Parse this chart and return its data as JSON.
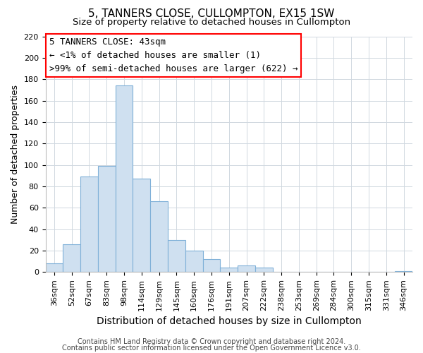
{
  "title": "5, TANNERS CLOSE, CULLOMPTON, EX15 1SW",
  "subtitle": "Size of property relative to detached houses in Cullompton",
  "xlabel": "Distribution of detached houses by size in Cullompton",
  "ylabel": "Number of detached properties",
  "bar_color": "#cfe0f0",
  "bar_edge_color": "#7fb0d8",
  "background_color": "#ffffff",
  "grid_color": "#d0d8e0",
  "categories": [
    "36sqm",
    "52sqm",
    "67sqm",
    "83sqm",
    "98sqm",
    "114sqm",
    "129sqm",
    "145sqm",
    "160sqm",
    "176sqm",
    "191sqm",
    "207sqm",
    "222sqm",
    "238sqm",
    "253sqm",
    "269sqm",
    "284sqm",
    "300sqm",
    "315sqm",
    "331sqm",
    "346sqm"
  ],
  "values": [
    8,
    26,
    89,
    99,
    174,
    87,
    66,
    30,
    20,
    12,
    4,
    6,
    4,
    0,
    0,
    0,
    0,
    0,
    0,
    0,
    1
  ],
  "ylim": [
    0,
    220
  ],
  "yticks": [
    0,
    20,
    40,
    60,
    80,
    100,
    120,
    140,
    160,
    180,
    200,
    220
  ],
  "annotation_line1": "5 TANNERS CLOSE: 43sqm",
  "annotation_line2": "← <1% of detached houses are smaller (1)",
  "annotation_line3": ">99% of semi-detached houses are larger (622) →",
  "footer_line1": "Contains HM Land Registry data © Crown copyright and database right 2024.",
  "footer_line2": "Contains public sector information licensed under the Open Government Licence v3.0.",
  "title_fontsize": 11,
  "subtitle_fontsize": 9.5,
  "xlabel_fontsize": 10,
  "ylabel_fontsize": 9,
  "tick_fontsize": 8,
  "annotation_fontsize": 9,
  "footer_fontsize": 7
}
